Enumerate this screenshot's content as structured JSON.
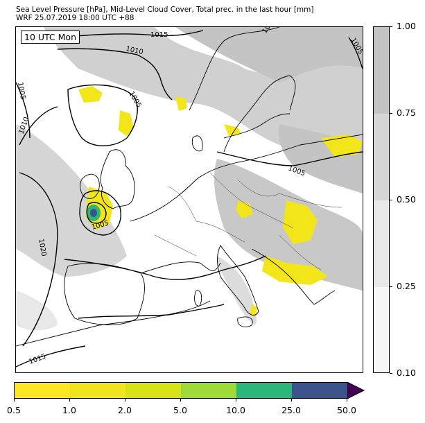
{
  "header": {
    "title_line1": "Sea Level Pressure [hPa], Mid-Level Cloud Cover, Total prec. in the last hour [mm]",
    "title_line2": "WRF 25.07.2019 18:00 UTC +88"
  },
  "map": {
    "time_label": "10 UTC Mon",
    "isobar_labels": [
      "1015",
      "1010",
      "1005",
      "1005",
      "1020",
      "1005",
      "1010",
      "1005",
      "1020",
      "1005",
      "1015"
    ]
  },
  "cloud_colorbar": {
    "ticks": [
      "0.10",
      "0.25",
      "0.50",
      "0.75",
      "1.00"
    ],
    "colors": [
      "#f7f7f7",
      "#e8e8e8",
      "#d6d6d6",
      "#c4c4c4"
    ]
  },
  "precip_colorbar": {
    "ticks": [
      "0.5",
      "1.0",
      "2.0",
      "5.0",
      "10.0",
      "25.0",
      "50.0"
    ],
    "colors": [
      "#fde725",
      "#f0e420",
      "#d8e219",
      "#a0da39",
      "#2db67b",
      "#3b528b",
      "#440154"
    ]
  }
}
